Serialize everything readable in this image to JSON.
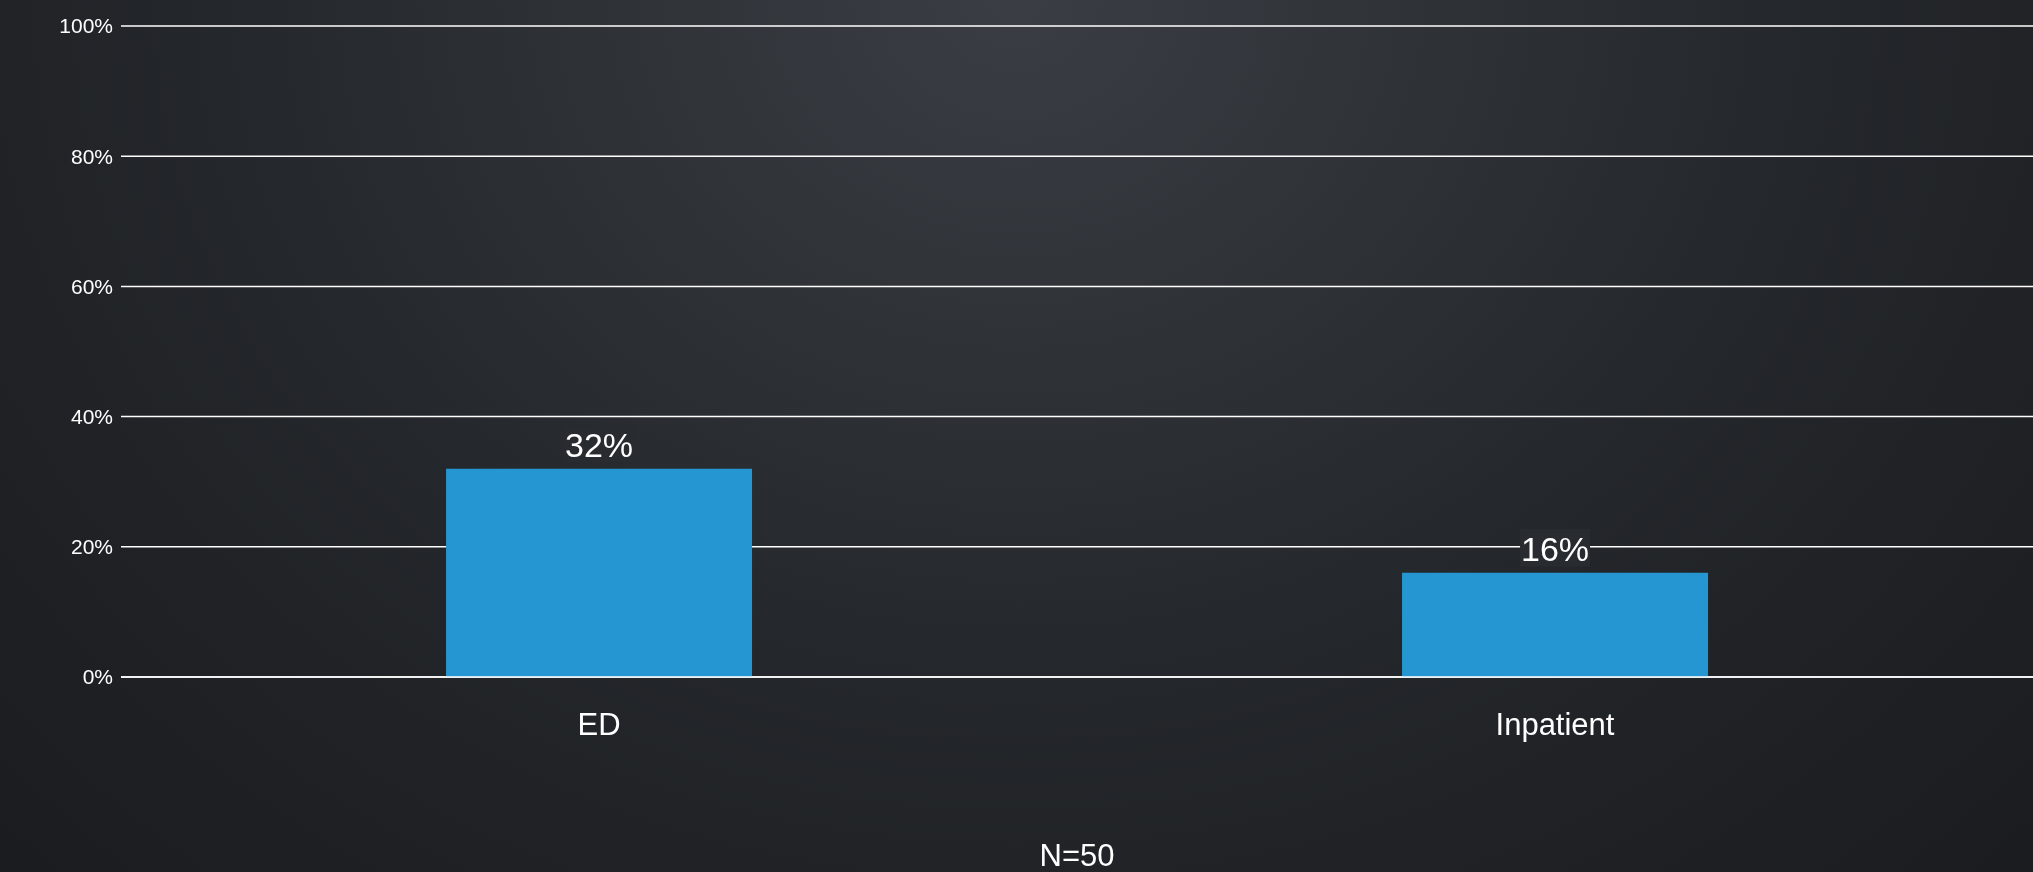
{
  "chart_data": {
    "type": "bar",
    "xlabel": "N=50",
    "categories": [
      "ED",
      "Inpatient"
    ],
    "values": [
      32,
      16
    ],
    "color": "#2596d1",
    "value_labels": [
      "32%",
      "16%"
    ],
    "ylim": [
      0,
      100
    ],
    "yticks": [
      {
        "value": 0,
        "label": "0%"
      },
      {
        "value": 20,
        "label": "20%"
      },
      {
        "value": 40,
        "label": "40%"
      },
      {
        "value": 60,
        "label": "60%"
      },
      {
        "value": 80,
        "label": "80%"
      },
      {
        "value": 100,
        "label": "100%"
      }
    ],
    "grid": "y"
  }
}
